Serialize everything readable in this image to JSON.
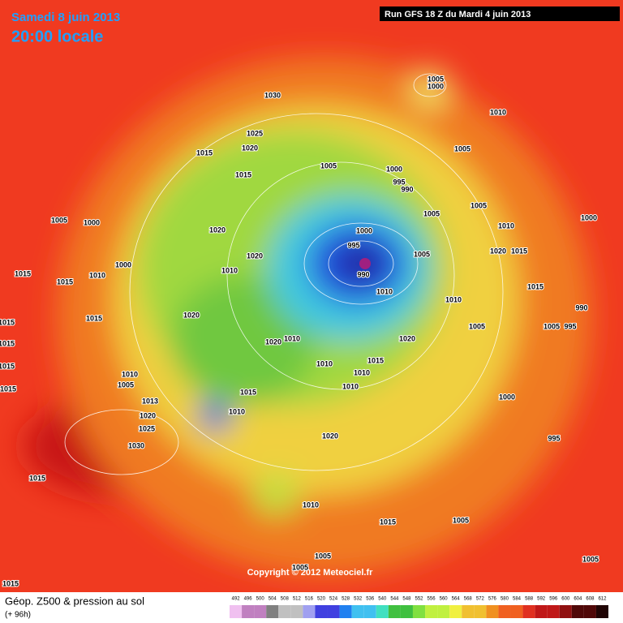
{
  "header": {
    "date": "Samedi 8 juin 2013",
    "time": "20:00 locale",
    "run": "Run GFS 18 Z du Mardi 4 juin 2013"
  },
  "map": {
    "pressure_labels": [
      1005,
      1000,
      1030,
      1010,
      1025,
      1015,
      1020,
      1005,
      1015,
      1005,
      1000,
      995,
      990,
      1005,
      1000,
      1005,
      1005,
      1010,
      1000,
      1020,
      1000,
      995,
      1020,
      1005,
      1020,
      1015,
      1000,
      1010,
      990,
      1015,
      1015,
      1010,
      1010,
      1015,
      1010,
      990,
      1015,
      1015,
      1020,
      1005,
      995,
      1005,
      1010,
      1020,
      1020,
      1015,
      1010,
      1015,
      1015,
      1010,
      1010,
      1005,
      1010,
      1015,
      1015,
      1013,
      1000,
      1010,
      1020,
      1025,
      1020,
      995,
      1030,
      1015,
      1010,
      1015,
      1005,
      1005,
      1005,
      1005,
      1015
    ],
    "copyright": "Copyright © 2012 Meteociel.fr"
  },
  "footer": {
    "title": "Géop. Z500 & pression au sol",
    "lead": "(+ 96h)",
    "scale": [
      492,
      496,
      500,
      504,
      508,
      512,
      516,
      520,
      524,
      528,
      532,
      536,
      540,
      544,
      548,
      552,
      556,
      560,
      564,
      568,
      572,
      576,
      580,
      584,
      588,
      592,
      596,
      600,
      604,
      608,
      612
    ]
  }
}
